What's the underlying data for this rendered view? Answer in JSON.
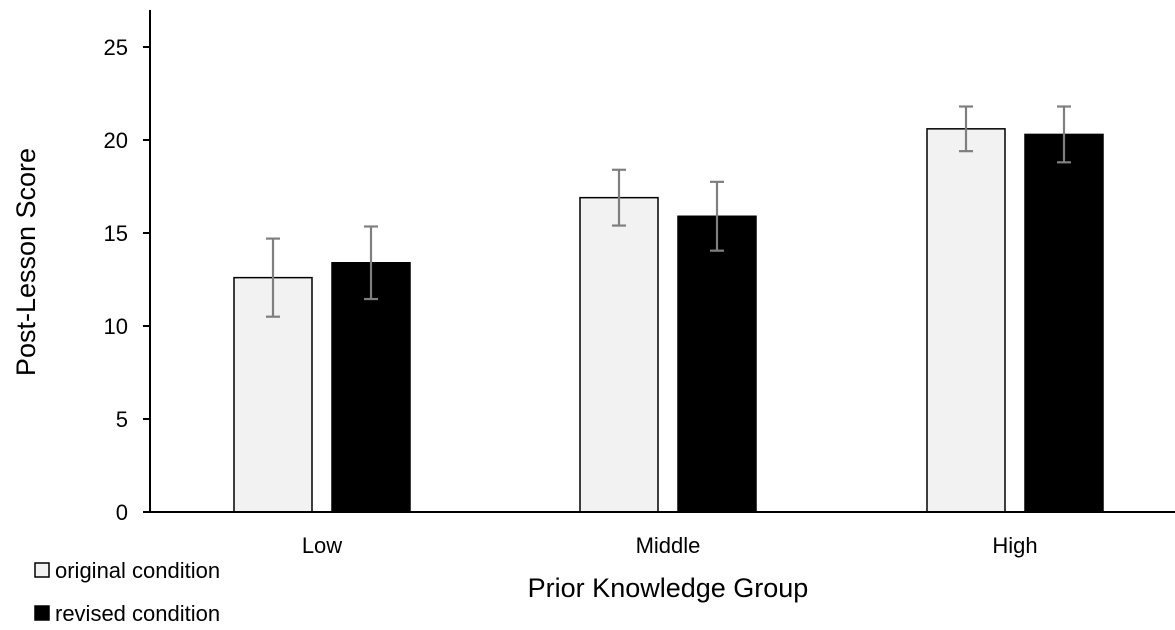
{
  "chart_data": {
    "type": "bar",
    "title": "",
    "xlabel": "Prior Knowledge Group",
    "ylabel": "Post-Lesson Score",
    "categories": [
      "Low",
      "Middle",
      "High"
    ],
    "ylim": [
      0,
      25
    ],
    "yticks": [
      0,
      5,
      10,
      15,
      20,
      25
    ],
    "grid": false,
    "legend_position": "bottom-left",
    "series": [
      {
        "name": "original condition",
        "values": [
          12.6,
          16.9,
          20.6
        ],
        "error": [
          2.1,
          1.5,
          1.2
        ],
        "color": "#f2f2f2",
        "stroke": "#000000"
      },
      {
        "name": "revised condition",
        "values": [
          13.4,
          15.9,
          20.3
        ],
        "error": [
          1.95,
          1.85,
          1.5
        ],
        "color": "#000000",
        "stroke": "#000000"
      }
    ],
    "error_bar_color": "#7f7f7f"
  }
}
